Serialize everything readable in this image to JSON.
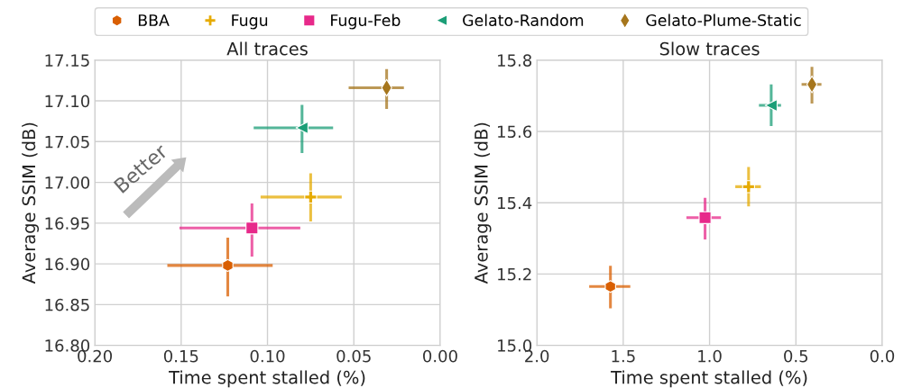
{
  "chart_data": [
    {
      "type": "scatter",
      "title": "All traces",
      "xlabel": "Time spent stalled (%)",
      "ylabel": "Average SSIM (dB)",
      "xlim": [
        0.2,
        0.0
      ],
      "xticks": [
        {
          "value": 0.2,
          "label": "0.20"
        },
        {
          "value": 0.15,
          "label": "0.15"
        },
        {
          "value": 0.1,
          "label": "0.10"
        },
        {
          "value": 0.05,
          "label": "0.05"
        },
        {
          "value": 0.0,
          "label": "0.00"
        }
      ],
      "ylim": [
        16.8,
        17.15
      ],
      "yticks": [
        {
          "value": 16.8,
          "label": "16.80"
        },
        {
          "value": 16.85,
          "label": "16.85"
        },
        {
          "value": 16.9,
          "label": "16.90"
        },
        {
          "value": 16.95,
          "label": "16.95"
        },
        {
          "value": 17.0,
          "label": "17.00"
        },
        {
          "value": 17.05,
          "label": "17.05"
        },
        {
          "value": 17.1,
          "label": "17.10"
        },
        {
          "value": 17.15,
          "label": "17.15"
        }
      ],
      "grid": true,
      "legend": "top",
      "annotations": [
        "Better"
      ],
      "series": [
        {
          "name": "BBA",
          "color": "#d95f02",
          "marker": "circle",
          "x": [
            0.123
          ],
          "values": [
            16.898
          ],
          "xerrors": [
            [
              0.097,
              0.158
            ]
          ],
          "errors": [
            [
              16.86,
              16.932
            ]
          ]
        },
        {
          "name": "Fugu",
          "color": "#e6ab02",
          "marker": "cross",
          "x": [
            0.075
          ],
          "values": [
            16.982
          ],
          "xerrors": [
            [
              0.057,
              0.104
            ]
          ],
          "errors": [
            [
              16.952,
              17.011
            ]
          ]
        },
        {
          "name": "Fugu-Feb",
          "color": "#e7298a",
          "marker": "square",
          "x": [
            0.109
          ],
          "values": [
            16.944
          ],
          "xerrors": [
            [
              0.081,
              0.151
            ]
          ],
          "errors": [
            [
              16.909,
              16.974
            ]
          ]
        },
        {
          "name": "Gelato-Random",
          "color": "#1b9e77",
          "marker": "triangle",
          "x": [
            0.08
          ],
          "values": [
            17.067
          ],
          "xerrors": [
            [
              0.062,
              0.108
            ]
          ],
          "errors": [
            [
              17.036,
              17.095
            ]
          ]
        },
        {
          "name": "Gelato-Plume-Static",
          "color": "#a6761d",
          "marker": "diamond",
          "x": [
            0.031
          ],
          "values": [
            17.116
          ],
          "xerrors": [
            [
              0.021,
              0.053
            ]
          ],
          "errors": [
            [
              17.09,
              17.139
            ]
          ]
        }
      ]
    },
    {
      "type": "scatter",
      "title": "Slow traces",
      "xlabel": "Time spent stalled (%)",
      "ylabel": "Average SSIM (dB)",
      "xlim": [
        2.0,
        0.0
      ],
      "xticks": [
        {
          "value": 2.0,
          "label": "2.0"
        },
        {
          "value": 1.5,
          "label": "1.5"
        },
        {
          "value": 1.0,
          "label": "1.0"
        },
        {
          "value": 0.5,
          "label": "0.5"
        },
        {
          "value": 0.0,
          "label": "0.0"
        }
      ],
      "ylim": [
        15.0,
        15.8
      ],
      "yticks": [
        {
          "value": 15.0,
          "label": "15.0"
        },
        {
          "value": 15.2,
          "label": "15.2"
        },
        {
          "value": 15.4,
          "label": "15.4"
        },
        {
          "value": 15.6,
          "label": "15.6"
        },
        {
          "value": 15.8,
          "label": "15.8"
        }
      ],
      "grid": true,
      "series": [
        {
          "color": "#d95f02",
          "marker": "circle",
          "x": [
            1.574
          ],
          "values": [
            15.165
          ],
          "xerrors": [
            [
              1.459,
              1.697
            ]
          ],
          "errors": [
            [
              15.104,
              15.223
            ]
          ]
        },
        {
          "color": "#e6ab02",
          "marker": "cross",
          "x": [
            0.774
          ],
          "values": [
            15.445
          ],
          "xerrors": [
            [
              0.703,
              0.851
            ]
          ],
          "errors": [
            [
              15.39,
              15.5
            ]
          ]
        },
        {
          "color": "#e7298a",
          "marker": "square",
          "x": [
            1.026
          ],
          "values": [
            15.358
          ],
          "xerrors": [
            [
              0.934,
              1.134
            ]
          ],
          "errors": [
            [
              15.297,
              15.414
            ]
          ]
        },
        {
          "color": "#1b9e77",
          "marker": "triangle",
          "x": [
            0.643
          ],
          "values": [
            15.673
          ],
          "xerrors": [
            [
              0.586,
              0.714
            ]
          ],
          "errors": [
            [
              15.615,
              15.732
            ]
          ]
        },
        {
          "color": "#a6761d",
          "marker": "diamond",
          "x": [
            0.407
          ],
          "values": [
            15.732
          ],
          "xerrors": [
            [
              0.352,
              0.467
            ]
          ],
          "errors": [
            [
              15.678,
              15.781
            ]
          ]
        }
      ]
    }
  ]
}
